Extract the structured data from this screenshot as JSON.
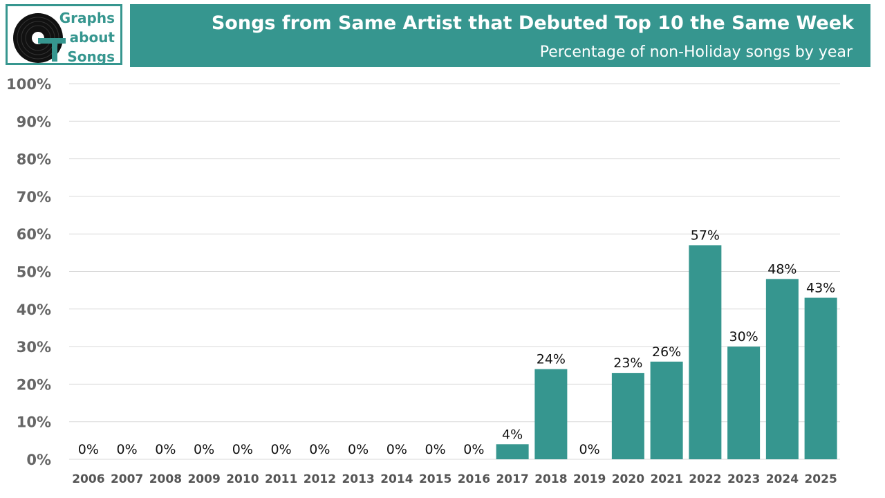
{
  "logo": {
    "lines": [
      "Graphs",
      "about",
      "Songs"
    ]
  },
  "header": {
    "title": "Songs from Same Artist that Debuted Top 10 the Same Week",
    "subtitle": "Percentage of non-Holiday songs by year"
  },
  "colors": {
    "accent": "#36968F",
    "bar": "#36968F",
    "grid": "#D9D9D9",
    "disc": "#111111"
  },
  "chart_data": {
    "type": "bar",
    "title": "Songs from Same Artist that Debuted Top 10 the Same Week",
    "subtitle": "Percentage of non-Holiday songs by year",
    "categories": [
      "2006",
      "2007",
      "2008",
      "2009",
      "2010",
      "2011",
      "2012",
      "2013",
      "2014",
      "2015",
      "2016",
      "2017",
      "2018",
      "2019",
      "2020",
      "2021",
      "2022",
      "2023",
      "2024",
      "2025"
    ],
    "values": [
      0,
      0,
      0,
      0,
      0,
      0,
      0,
      0,
      0,
      0,
      0,
      4,
      24,
      0,
      23,
      26,
      57,
      30,
      48,
      43
    ],
    "data_labels": [
      "0%",
      "0%",
      "0%",
      "0%",
      "0%",
      "0%",
      "0%",
      "0%",
      "0%",
      "0%",
      "0%",
      "4%",
      "24%",
      "0%",
      "23%",
      "26%",
      "57%",
      "30%",
      "48%",
      "43%"
    ],
    "yticks": [
      "0%",
      "10%",
      "20%",
      "30%",
      "40%",
      "50%",
      "60%",
      "70%",
      "80%",
      "90%",
      "100%"
    ],
    "ylim": [
      0,
      100
    ],
    "xlabel": "",
    "ylabel": "",
    "grid": true,
    "legend": "none"
  }
}
